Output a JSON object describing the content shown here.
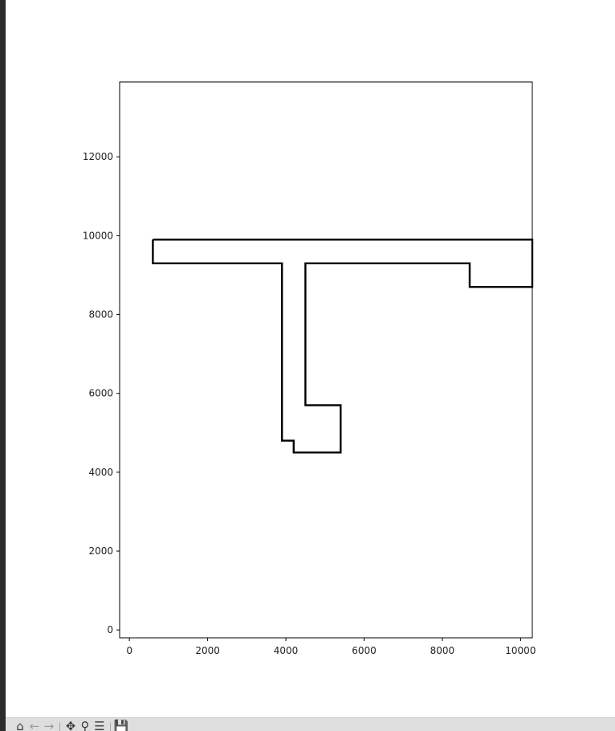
{
  "chart_data": {
    "type": "line",
    "title": "",
    "xlabel": "",
    "ylabel": "",
    "xlim": [
      -250,
      10300
    ],
    "ylim": [
      -200,
      13900
    ],
    "xticks": [
      0,
      2000,
      4000,
      6000,
      8000,
      10000
    ],
    "yticks": [
      0,
      2000,
      4000,
      6000,
      8000,
      10000,
      12000
    ],
    "xtick_labels": [
      "0",
      "2000",
      "4000",
      "6000",
      "8000",
      "10000"
    ],
    "ytick_labels": [
      "0",
      "2000",
      "4000",
      "6000",
      "8000",
      "10000",
      "12000"
    ],
    "grid": false,
    "line_color": "#000000",
    "series": [
      {
        "x": [
          600,
          10300,
          10300,
          8700,
          8700,
          4500,
          4500,
          5400,
          5400,
          4200,
          4200,
          3900,
          3900,
          600,
          600
        ],
        "y": [
          9900,
          9900,
          8700,
          8700,
          9300,
          9300,
          5700,
          5700,
          4500,
          4500,
          4800,
          4800,
          9300,
          9300,
          9900
        ]
      }
    ]
  },
  "toolbar": {
    "home_icon": "home-icon",
    "back_icon": "back-arrow-icon",
    "forward_icon": "forward-arrow-icon",
    "pan_icon": "pan-icon",
    "zoom_icon": "zoom-icon",
    "configure_icon": "configure-subplots-icon",
    "save_icon": "save-icon"
  }
}
